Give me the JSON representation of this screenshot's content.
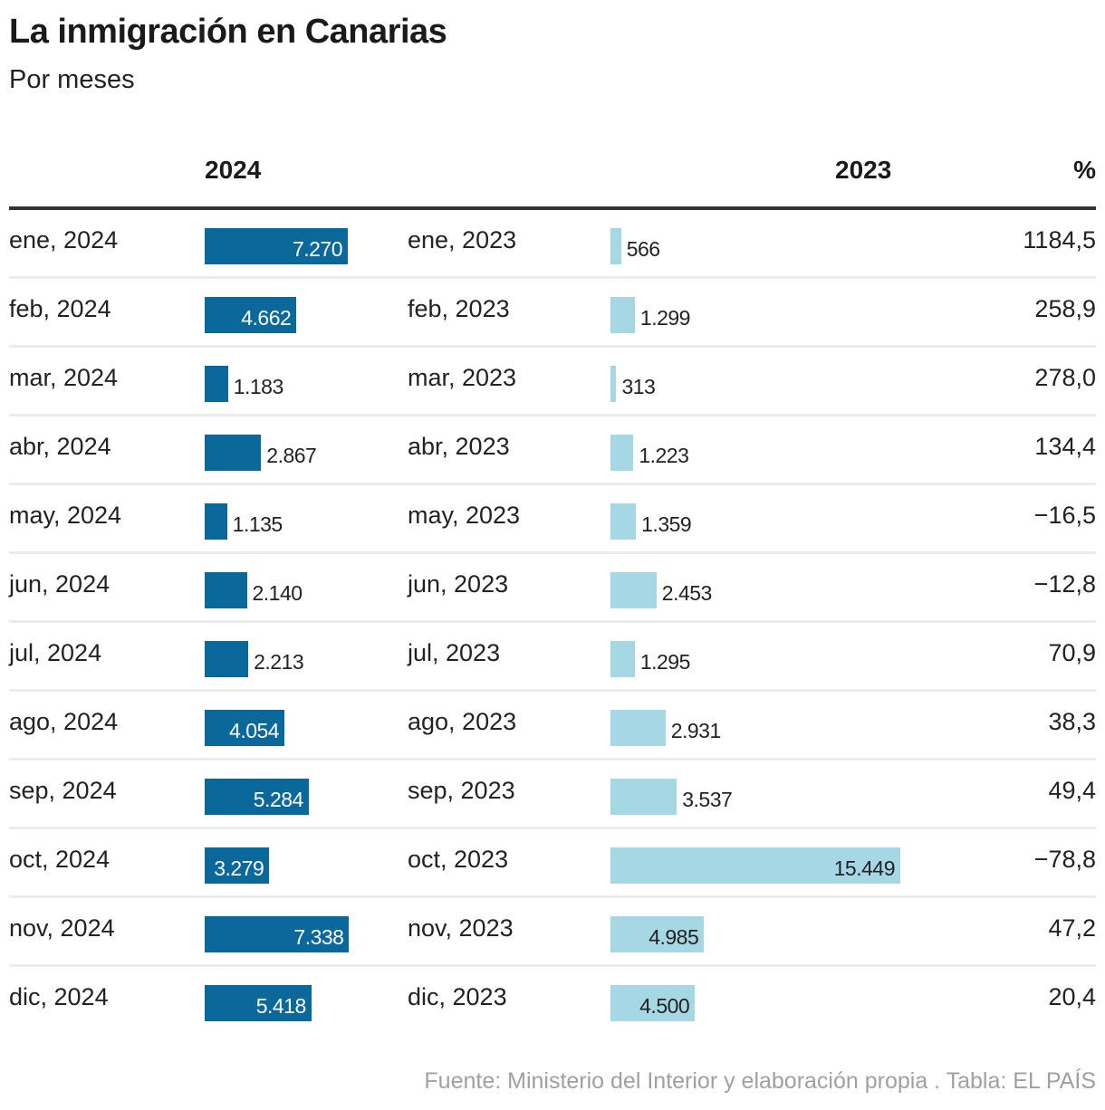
{
  "title": "La inmigración en Canarias",
  "subtitle": "Por meses",
  "headers": {
    "col2024": "2024",
    "col2023": "2023",
    "pct": "%"
  },
  "source": "Fuente: Ministerio del Interior y elaboración propia . Tabla: EL PAÍS",
  "colors": {
    "bar2024": "#0a689a",
    "bar2023": "#a6d7e4"
  },
  "chart_data": {
    "type": "table",
    "title": "La inmigración en Canarias",
    "subtitle": "Por meses",
    "columns": [
      "",
      "2024",
      "",
      "2023",
      "%"
    ],
    "rows": [
      {
        "label24": "ene, 2024",
        "v24": 7270,
        "t24": "7.270",
        "label23": "ene, 2023",
        "v23": 566,
        "t23": "566",
        "pct": "1184,5"
      },
      {
        "label24": "feb, 2024",
        "v24": 4662,
        "t24": "4.662",
        "label23": "feb, 2023",
        "v23": 1299,
        "t23": "1.299",
        "pct": "258,9"
      },
      {
        "label24": "mar, 2024",
        "v24": 1183,
        "t24": "1.183",
        "label23": "mar, 2023",
        "v23": 313,
        "t23": "313",
        "pct": "278,0"
      },
      {
        "label24": "abr, 2024",
        "v24": 2867,
        "t24": "2.867",
        "label23": "abr, 2023",
        "v23": 1223,
        "t23": "1.223",
        "pct": "134,4"
      },
      {
        "label24": "may, 2024",
        "v24": 1135,
        "t24": "1.135",
        "label23": "may, 2023",
        "v23": 1359,
        "t23": "1.359",
        "pct": "−16,5"
      },
      {
        "label24": "jun, 2024",
        "v24": 2140,
        "t24": "2.140",
        "label23": "jun, 2023",
        "v23": 2453,
        "t23": "2.453",
        "pct": "−12,8"
      },
      {
        "label24": "jul, 2024",
        "v24": 2213,
        "t24": "2.213",
        "label23": "jul, 2023",
        "v23": 1295,
        "t23": "1.295",
        "pct": "70,9"
      },
      {
        "label24": "ago, 2024",
        "v24": 4054,
        "t24": "4.054",
        "label23": "ago, 2023",
        "v23": 2931,
        "t23": "2.931",
        "pct": "38,3"
      },
      {
        "label24": "sep, 2024",
        "v24": 5284,
        "t24": "5.284",
        "label23": "sep, 2023",
        "v23": 3537,
        "t23": "3.537",
        "pct": "49,4"
      },
      {
        "label24": "oct, 2024",
        "v24": 3279,
        "t24": "3.279",
        "label23": "oct, 2023",
        "v23": 15449,
        "t23": "15.449",
        "pct": "−78,8"
      },
      {
        "label24": "nov, 2024",
        "v24": 7338,
        "t24": "7.338",
        "label23": "nov, 2023",
        "v23": 4985,
        "t23": "4.985",
        "pct": "47,2"
      },
      {
        "label24": "dic, 2024",
        "v24": 5418,
        "t24": "5.418",
        "label23": "dic, 2023",
        "v23": 4500,
        "t23": "4.500",
        "pct": "20,4"
      }
    ]
  }
}
